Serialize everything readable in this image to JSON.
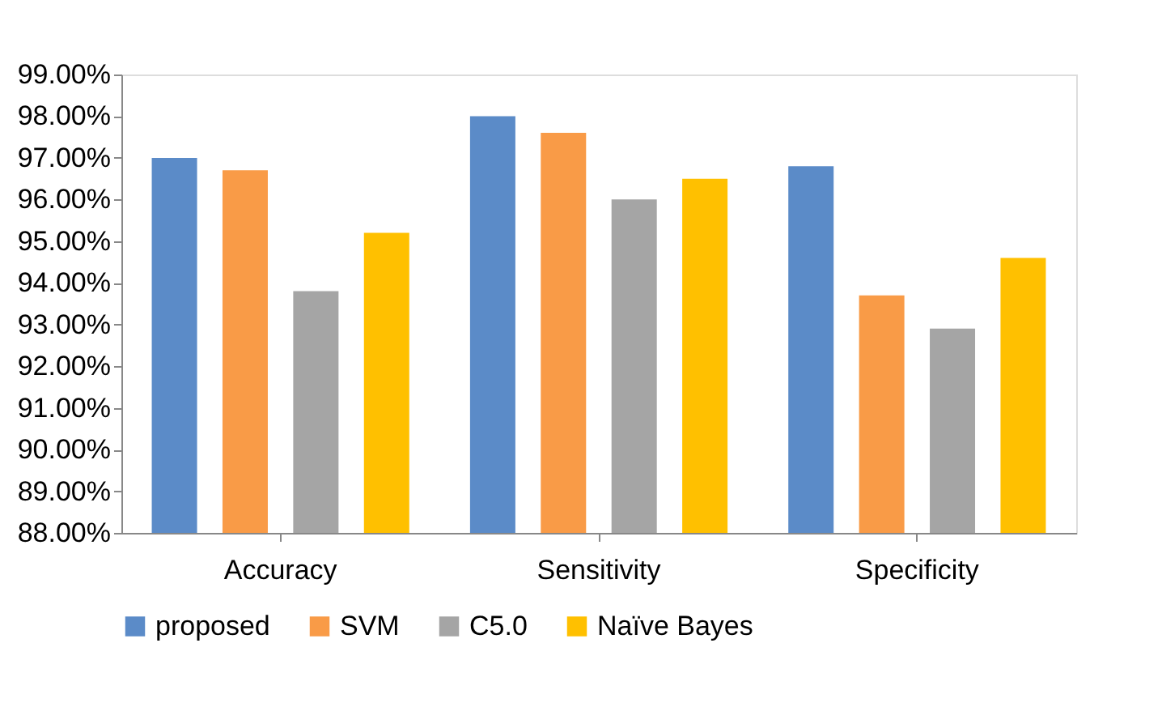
{
  "chart_data": {
    "type": "bar",
    "categories": [
      "Accuracy",
      "Sensitivity",
      "Specificity"
    ],
    "series": [
      {
        "name": "proposed",
        "color": "#5b8bc8",
        "values": [
          97.0,
          98.0,
          96.8
        ]
      },
      {
        "name": "SVM",
        "color": "#f99b47",
        "values": [
          96.7,
          97.6,
          93.7
        ]
      },
      {
        "name": "C5.0",
        "color": "#a5a5a5",
        "values": [
          93.8,
          96.0,
          92.9
        ]
      },
      {
        "name": "Naïve Bayes",
        "color": "#ffc000",
        "values": [
          95.2,
          96.5,
          94.6
        ]
      }
    ],
    "ylim": [
      88,
      99
    ],
    "yticks": [
      {
        "value": 88,
        "label": "88.00%"
      },
      {
        "value": 89,
        "label": "89.00%"
      },
      {
        "value": 90,
        "label": "90.00%"
      },
      {
        "value": 91,
        "label": "91.00%"
      },
      {
        "value": 92,
        "label": "92.00%"
      },
      {
        "value": 93,
        "label": "93.00%"
      },
      {
        "value": 94,
        "label": "94.00%"
      },
      {
        "value": 95,
        "label": "95.00%"
      },
      {
        "value": 96,
        "label": "96.00%"
      },
      {
        "value": 97,
        "label": "97.00%"
      },
      {
        "value": 98,
        "label": "98.00%"
      },
      {
        "value": 99,
        "label": "99.00%"
      }
    ],
    "grid": false,
    "legend": "bottom"
  }
}
